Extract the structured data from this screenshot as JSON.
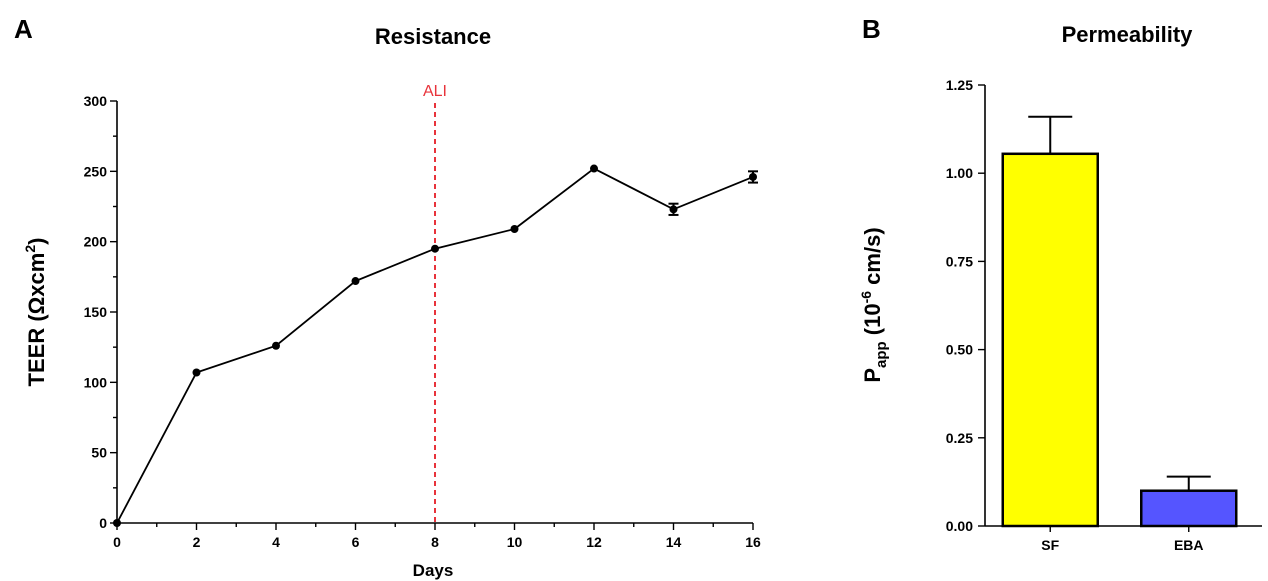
{
  "panels": {
    "a_label": "A",
    "b_label": "B"
  },
  "chart_data": [
    {
      "type": "line",
      "title": "Resistance",
      "xlabel": "Days",
      "ylabel_prefix": "TEER (",
      "ylabel_unit": "Ωxcm",
      "ylabel_sup": "2",
      "ylabel_suffix": ")",
      "xlim": [
        0,
        16
      ],
      "ylim": [
        0,
        300
      ],
      "x_ticks": [
        0,
        2,
        4,
        6,
        8,
        10,
        12,
        14,
        16
      ],
      "y_ticks": [
        0,
        50,
        100,
        150,
        200,
        250,
        300
      ],
      "x": [
        0,
        2,
        4,
        6,
        8,
        10,
        12,
        14,
        16
      ],
      "y": [
        0,
        107,
        126,
        172,
        195,
        209,
        252,
        223,
        246
      ],
      "error": [
        0,
        0,
        0,
        0,
        0,
        0,
        0,
        4,
        4
      ],
      "annotation": {
        "text": "ALI",
        "x": 8,
        "color": "#e8333b"
      },
      "grid": false
    },
    {
      "type": "bar",
      "title": "Permeability",
      "categories": [
        "SF",
        "EBA"
      ],
      "values": [
        1.055,
        0.1
      ],
      "error": [
        0.105,
        0.04
      ],
      "colors": [
        "#ffff00",
        "#5555ff"
      ],
      "ylabel_main": "P",
      "ylabel_sub": "app",
      "ylabel_mid": " (10",
      "ylabel_sup": "-6",
      "ylabel_end": " cm/s)",
      "ylim": [
        0,
        1.25
      ],
      "y_ticks": [
        "0.00",
        "0.25",
        "0.50",
        "0.75",
        "1.00",
        "1.25"
      ],
      "grid": false
    }
  ]
}
